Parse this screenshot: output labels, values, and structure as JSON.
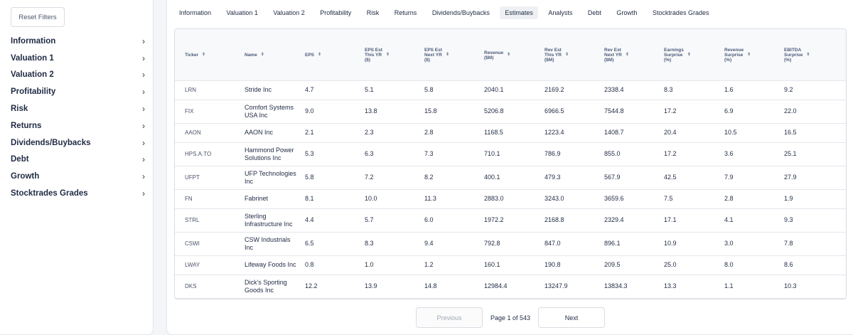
{
  "sidebar": {
    "reset_label": "Reset Filters",
    "items": [
      {
        "label": "Information",
        "chevron": "›"
      },
      {
        "label": "Valuation 1",
        "chevron": "›"
      },
      {
        "label": "Valuation 2",
        "chevron": "›"
      },
      {
        "label": "Profitability",
        "chevron": "›"
      },
      {
        "label": "Risk",
        "chevron": "›"
      },
      {
        "label": "Returns",
        "chevron": "›"
      },
      {
        "label": "Dividends/Buybacks",
        "chevron": "›"
      },
      {
        "label": "Debt",
        "chevron": "›"
      },
      {
        "label": "Growth",
        "chevron": "›"
      },
      {
        "label": "Stocktrades Grades",
        "chevron": "›"
      }
    ]
  },
  "tabs": {
    "items": [
      "Information",
      "Valuation 1",
      "Valuation 2",
      "Profitability",
      "Risk",
      "Returns",
      "Dividends/Buybacks",
      "Estimates",
      "Analysts",
      "Debt",
      "Growth",
      "Stocktrades Grades"
    ],
    "active": "Estimates"
  },
  "table": {
    "sort_icon": "⬍",
    "headers": [
      {
        "line1": "Ticker",
        "line2": "",
        "line3": ""
      },
      {
        "line1": "Name",
        "line2": "",
        "line3": ""
      },
      {
        "line1": "EPS",
        "line2": "",
        "line3": ""
      },
      {
        "line1": "EPS Est",
        "line2": "This YR",
        "line3": "($)"
      },
      {
        "line1": "EPS Est",
        "line2": "Next YR",
        "line3": "($)"
      },
      {
        "line1": "Revenue",
        "line2": "($M)",
        "line3": ""
      },
      {
        "line1": "Rev Est",
        "line2": "This YR",
        "line3": "($M)"
      },
      {
        "line1": "Rev Est",
        "line2": "Next YR",
        "line3": "($M)"
      },
      {
        "line1": "Earnings",
        "line2": "Surprise",
        "line3": "(%)"
      },
      {
        "line1": "Revenue",
        "line2": "Surprise",
        "line3": "(%)"
      },
      {
        "line1": "EBITDA",
        "line2": "Surprise",
        "line3": "(%)"
      }
    ],
    "rows": [
      {
        "ticker": "LRN",
        "name1": "Stride Inc",
        "name2": "",
        "eps": "4.7",
        "eps_this": "5.1",
        "eps_next": "5.8",
        "revenue": "2040.1",
        "rev_this": "2169.2",
        "rev_next": "2338.4",
        "earn_surp": "8.3",
        "rev_surp": "1.6",
        "ebitda_surp": "9.2"
      },
      {
        "ticker": "FIX",
        "name1": "Comfort Systems",
        "name2": "USA Inc",
        "eps": "9.0",
        "eps_this": "13.8",
        "eps_next": "15.8",
        "revenue": "5206.8",
        "rev_this": "6966.5",
        "rev_next": "7544.8",
        "earn_surp": "17.2",
        "rev_surp": "6.9",
        "ebitda_surp": "22.0"
      },
      {
        "ticker": "AAON",
        "name1": "AAON Inc",
        "name2": "",
        "eps": "2.1",
        "eps_this": "2.3",
        "eps_next": "2.8",
        "revenue": "1168.5",
        "rev_this": "1223.4",
        "rev_next": "1408.7",
        "earn_surp": "20.4",
        "rev_surp": "10.5",
        "ebitda_surp": "16.5"
      },
      {
        "ticker": "HPS.A.TO",
        "name1": "Hammond Power",
        "name2": "Solutions Inc",
        "eps": "5.3",
        "eps_this": "6.3",
        "eps_next": "7.3",
        "revenue": "710.1",
        "rev_this": "786.9",
        "rev_next": "855.0",
        "earn_surp": "17.2",
        "rev_surp": "3.6",
        "ebitda_surp": "25.1"
      },
      {
        "ticker": "UFPT",
        "name1": "UFP Technologies",
        "name2": "Inc",
        "eps": "5.8",
        "eps_this": "7.2",
        "eps_next": "8.2",
        "revenue": "400.1",
        "rev_this": "479.3",
        "rev_next": "567.9",
        "earn_surp": "42.5",
        "rev_surp": "7.9",
        "ebitda_surp": "27.9"
      },
      {
        "ticker": "FN",
        "name1": "Fabrinet",
        "name2": "",
        "eps": "8.1",
        "eps_this": "10.0",
        "eps_next": "11.3",
        "revenue": "2883.0",
        "rev_this": "3243.0",
        "rev_next": "3659.6",
        "earn_surp": "7.5",
        "rev_surp": "2.8",
        "ebitda_surp": "1.9"
      },
      {
        "ticker": "STRL",
        "name1": "Sterling",
        "name2": "Infrastructure Inc",
        "eps": "4.4",
        "eps_this": "5.7",
        "eps_next": "6.0",
        "revenue": "1972.2",
        "rev_this": "2168.8",
        "rev_next": "2329.4",
        "earn_surp": "17.1",
        "rev_surp": "4.1",
        "ebitda_surp": "9.3"
      },
      {
        "ticker": "CSWI",
        "name1": "CSW Industrials",
        "name2": "Inc",
        "eps": "6.5",
        "eps_this": "8.3",
        "eps_next": "9.4",
        "revenue": "792.8",
        "rev_this": "847.0",
        "rev_next": "896.1",
        "earn_surp": "10.9",
        "rev_surp": "3.0",
        "ebitda_surp": "7.8"
      },
      {
        "ticker": "LWAY",
        "name1": "Lifeway Foods Inc",
        "name2": "",
        "eps": "0.8",
        "eps_this": "1.0",
        "eps_next": "1.2",
        "revenue": "160.1",
        "rev_this": "190.8",
        "rev_next": "209.5",
        "earn_surp": "25.0",
        "rev_surp": "8.0",
        "ebitda_surp": "8.6"
      },
      {
        "ticker": "DKS",
        "name1": "Dick's Sporting",
        "name2": "Goods Inc",
        "eps": "12.2",
        "eps_this": "13.9",
        "eps_next": "14.8",
        "revenue": "12984.4",
        "rev_this": "13247.9",
        "rev_next": "13834.3",
        "earn_surp": "13.3",
        "rev_surp": "1.1",
        "ebitda_surp": "10.3"
      }
    ]
  },
  "pagination": {
    "previous_label": "Previous",
    "page_info": "Page 1 of 543",
    "next_label": "Next"
  }
}
